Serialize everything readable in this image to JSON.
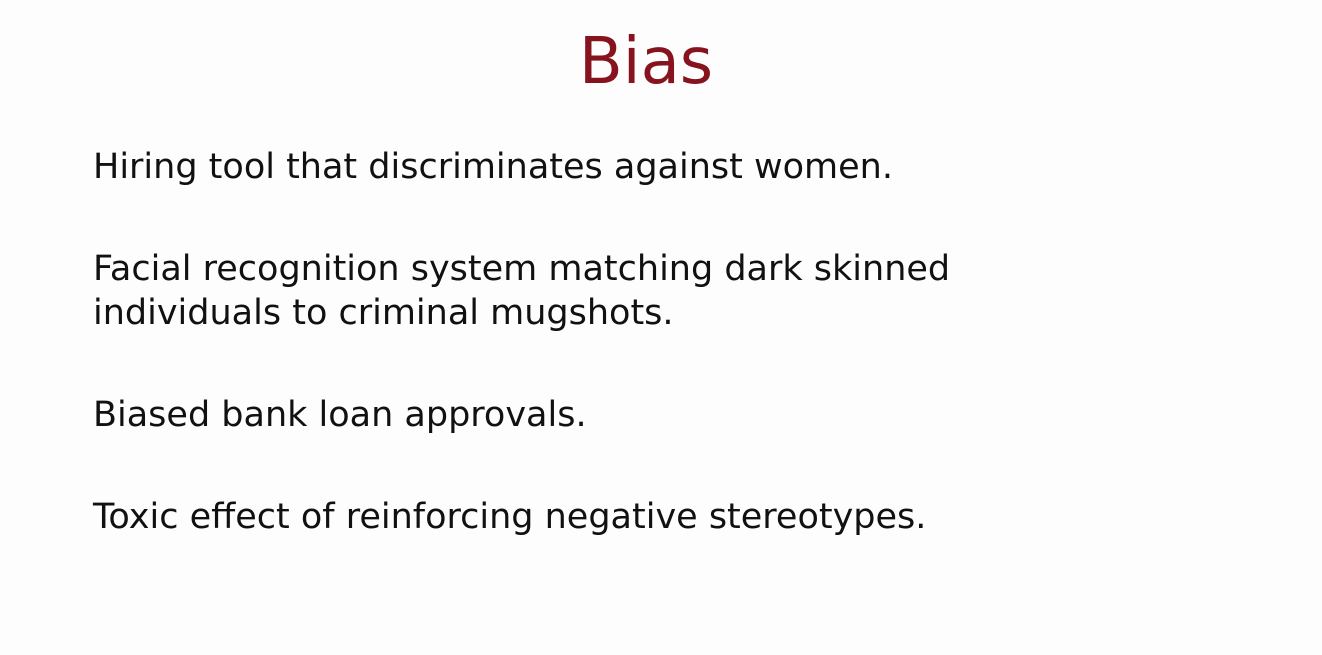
{
  "slide": {
    "title": "Bias",
    "points": [
      {
        "lines": [
          "Hiring tool that discriminates against women."
        ]
      },
      {
        "lines": [
          "Facial recognition system matching dark skinned",
          "individuals to criminal mugshots."
        ]
      },
      {
        "lines": [
          "Biased bank loan approvals."
        ]
      },
      {
        "lines": [
          "Toxic effect of reinforcing negative stereotypes."
        ]
      }
    ]
  },
  "colors": {
    "title": "#86131e",
    "text": "#111111",
    "background": "#fdfdfd"
  }
}
